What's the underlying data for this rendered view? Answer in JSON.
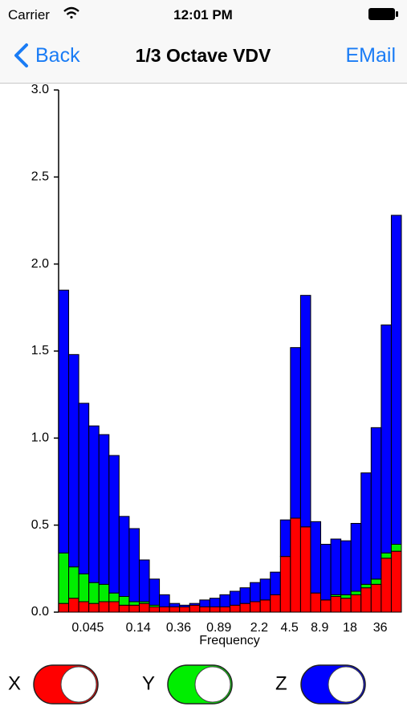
{
  "status_bar": {
    "carrier": "Carrier",
    "time": "12:01 PM"
  },
  "nav": {
    "back": "Back",
    "action": "EMail"
  },
  "chart_data": {
    "type": "bar",
    "stacked": true,
    "title": "1/3 Octave VDV",
    "x_label": "Frequency",
    "categories": [
      null,
      null,
      "0.045",
      null,
      null,
      null,
      null,
      "0.14",
      null,
      null,
      null,
      "0.36",
      null,
      null,
      null,
      "0.89",
      null,
      null,
      null,
      "2.2",
      null,
      null,
      "4.5",
      null,
      null,
      "8.9",
      null,
      null,
      "18",
      null,
      null,
      "36",
      null,
      null
    ],
    "series": [
      {
        "name": "X",
        "color": "#ff0000",
        "values": [
          0.05,
          0.08,
          0.06,
          0.05,
          0.06,
          0.06,
          0.04,
          0.04,
          0.05,
          0.03,
          0.03,
          0.03,
          0.03,
          0.04,
          0.03,
          0.03,
          0.03,
          0.04,
          0.05,
          0.06,
          0.07,
          0.1,
          0.32,
          0.54,
          0.49,
          0.11,
          0.07,
          0.09,
          0.08,
          0.1,
          0.14,
          0.16,
          0.31,
          0.35
        ]
      },
      {
        "name": "Y",
        "color": "#00ee00",
        "values": [
          0.29,
          0.18,
          0.16,
          0.12,
          0.1,
          0.05,
          0.05,
          0.02,
          0.01,
          0.01,
          0,
          0,
          0,
          0,
          0,
          0,
          0,
          0,
          0,
          0,
          0,
          0,
          0,
          0,
          0,
          0,
          0,
          0.01,
          0.02,
          0.02,
          0.02,
          0.03,
          0.03,
          0.04
        ]
      },
      {
        "name": "Z",
        "color": "#0000ff",
        "values": [
          1.51,
          1.22,
          0.98,
          0.9,
          0.86,
          0.79,
          0.46,
          0.42,
          0.24,
          0.15,
          0.07,
          0.02,
          0.01,
          0.01,
          0.04,
          0.05,
          0.07,
          0.08,
          0.09,
          0.11,
          0.12,
          0.13,
          0.21,
          0.98,
          1.33,
          0.41,
          0.32,
          0.32,
          0.31,
          0.39,
          0.64,
          0.87,
          1.31,
          1.89
        ]
      }
    ],
    "ylim": [
      0,
      3
    ],
    "yticks": [
      {
        "value": 0,
        "label": "0.0"
      },
      {
        "value": 0.5,
        "label": "0.5"
      },
      {
        "value": 1,
        "label": "1.0"
      },
      {
        "value": 1.5,
        "label": "1.5"
      },
      {
        "value": 2,
        "label": "2.0"
      },
      {
        "value": 2.5,
        "label": "2.5"
      },
      {
        "value": 3,
        "label": "3.0"
      }
    ]
  }
}
